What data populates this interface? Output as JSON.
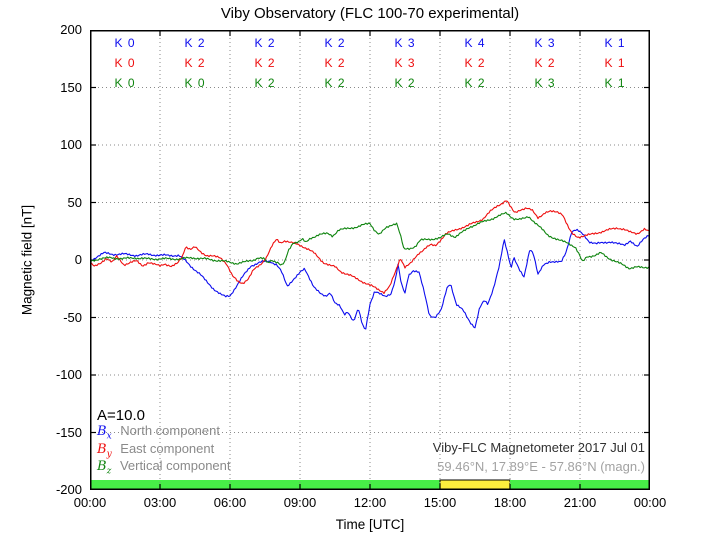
{
  "title": "Viby Observatory (FLC 100-70 experimental)",
  "axes": {
    "x_label": "Time [UTC]",
    "y_label": "Magnetic field [nT]",
    "x_ticks": [
      "00:00",
      "03:00",
      "06:00",
      "09:00",
      "12:00",
      "15:00",
      "18:00",
      "21:00",
      "00:00"
    ],
    "y_ticks": [
      "200",
      "150",
      "100",
      "50",
      "0",
      "-50",
      "-100",
      "-150",
      "-200"
    ],
    "x_range_hours": [
      0,
      24
    ],
    "y_range": [
      -200,
      200
    ],
    "grid": "dotted",
    "x_gridline_step_hours": 3,
    "y_gridline_step": 50
  },
  "k_indices": {
    "interval_hours": 3,
    "rows": [
      {
        "component": "north",
        "color": "#0d0dee",
        "values": [
          "K 0",
          "K 2",
          "K 2",
          "K 2",
          "K 3",
          "K 4",
          "K 3",
          "K 1"
        ]
      },
      {
        "component": "east",
        "color": "#ee0e0e",
        "values": [
          "K 0",
          "K 2",
          "K 2",
          "K 2",
          "K 3",
          "K 2",
          "K 2",
          "K 1"
        ]
      },
      {
        "component": "vertical",
        "color": "#0e840e",
        "values": [
          "K 0",
          "K 0",
          "K 2",
          "K 2",
          "K 2",
          "K 2",
          "K 3",
          "K 1"
        ]
      }
    ]
  },
  "annotations": {
    "a_index": "A=10.0",
    "station_line1": "Viby-FLC Magnetometer 2017 Jul 01",
    "station_line2": "59.46°N, 17.89°E - 57.86°N (magn.)"
  },
  "legend": [
    {
      "base": "B",
      "sub": "x",
      "label": "North component"
    },
    {
      "base": "B",
      "sub": "y",
      "label": "East component"
    },
    {
      "base": "B",
      "sub": "z",
      "label": "Vertical component"
    }
  ],
  "colors": {
    "north": "#0d0dee",
    "east": "#ee0e0e",
    "vertical": "#0e840e",
    "grid": "#8a8a8a",
    "frame": "#000000",
    "legend_text": "#8a8a8a",
    "station_primary": "#303030",
    "station_secondary": "#a2a2a2",
    "bar_quiet": "#47ef47",
    "bar_active": "#fdee3d"
  },
  "activity_bar": {
    "segments": [
      {
        "from_hour": 0,
        "to_hour": 15,
        "color": "#47ef47",
        "outlined": false
      },
      {
        "from_hour": 15,
        "to_hour": 18,
        "color": "#fdee3d",
        "outlined": true
      },
      {
        "from_hour": 18,
        "to_hour": 24,
        "color": "#47ef47",
        "outlined": false
      }
    ]
  },
  "chart_data": {
    "type": "line",
    "xlabel": "Time [UTC]",
    "ylabel": "Magnetic field [nT]",
    "xlim_hours": [
      0,
      24
    ],
    "ylim": [
      -200,
      200
    ],
    "x_units": "hours UTC",
    "y_units": "nT",
    "series": [
      {
        "name": "Bx North component",
        "color": "#0d0dee",
        "points": [
          [
            0,
            -1
          ],
          [
            0.3,
            3
          ],
          [
            0.6,
            6
          ],
          [
            1,
            5
          ],
          [
            1.5,
            5
          ],
          [
            2,
            4
          ],
          [
            2.5,
            5
          ],
          [
            3,
            4
          ],
          [
            3.5,
            4
          ],
          [
            3.8,
            4
          ],
          [
            4,
            1
          ],
          [
            4.3,
            -5
          ],
          [
            4.7,
            -12
          ],
          [
            5,
            -19
          ],
          [
            5.3,
            -25
          ],
          [
            5.6,
            -30
          ],
          [
            5.8,
            -32
          ],
          [
            6,
            -31
          ],
          [
            6.3,
            -22
          ],
          [
            6.6,
            -13
          ],
          [
            6.9,
            -5
          ],
          [
            7.3,
            -2
          ],
          [
            7.7,
            -1
          ],
          [
            8,
            -4
          ],
          [
            8.2,
            -10
          ],
          [
            8.45,
            -23
          ],
          [
            8.7,
            -17
          ],
          [
            9,
            -11
          ],
          [
            9.2,
            -8
          ],
          [
            9.6,
            -23
          ],
          [
            9.9,
            -30
          ],
          [
            10.1,
            -32
          ],
          [
            10.3,
            -28
          ],
          [
            10.5,
            -37
          ],
          [
            10.7,
            -40
          ],
          [
            10.9,
            -48
          ],
          [
            11.05,
            -45
          ],
          [
            11.3,
            -53
          ],
          [
            11.5,
            -42
          ],
          [
            11.65,
            -55
          ],
          [
            11.8,
            -62
          ],
          [
            12,
            -38
          ],
          [
            12.2,
            -27
          ],
          [
            12.45,
            -30
          ],
          [
            12.65,
            -32
          ],
          [
            12.9,
            -29
          ],
          [
            13.1,
            -16
          ],
          [
            13.2,
            -4
          ],
          [
            13.35,
            -22
          ],
          [
            13.5,
            -29
          ],
          [
            13.65,
            -13
          ],
          [
            13.85,
            -9
          ],
          [
            14.1,
            -11
          ],
          [
            14.35,
            -30
          ],
          [
            14.55,
            -48
          ],
          [
            14.8,
            -50
          ],
          [
            15.05,
            -44
          ],
          [
            15.3,
            -24
          ],
          [
            15.45,
            -20
          ],
          [
            15.7,
            -39
          ],
          [
            16,
            -44
          ],
          [
            16.3,
            -54
          ],
          [
            16.5,
            -59
          ],
          [
            16.7,
            -42
          ],
          [
            16.9,
            -35
          ],
          [
            17.05,
            -38
          ],
          [
            17.3,
            -24
          ],
          [
            17.55,
            -5
          ],
          [
            17.75,
            18
          ],
          [
            17.95,
            2
          ],
          [
            18.05,
            -7
          ],
          [
            18.15,
            3
          ],
          [
            18.4,
            -9
          ],
          [
            18.6,
            -15
          ],
          [
            18.85,
            10
          ],
          [
            19,
            6
          ],
          [
            19.2,
            -13
          ],
          [
            19.45,
            -4
          ],
          [
            19.7,
            -1
          ],
          [
            20,
            -2
          ],
          [
            20.2,
            -2
          ],
          [
            20.4,
            7
          ],
          [
            20.65,
            25
          ],
          [
            20.85,
            26
          ],
          [
            21.15,
            22
          ],
          [
            21.4,
            16
          ],
          [
            21.7,
            14
          ],
          [
            22,
            15
          ],
          [
            22.3,
            16
          ],
          [
            22.6,
            14
          ],
          [
            22.9,
            13
          ],
          [
            23.15,
            17
          ],
          [
            23.45,
            11
          ],
          [
            23.75,
            19
          ],
          [
            24,
            23
          ]
        ]
      },
      {
        "name": "By East component",
        "color": "#ee0e0e",
        "points": [
          [
            0,
            -2
          ],
          [
            0.2,
            -6
          ],
          [
            0.45,
            -3
          ],
          [
            0.7,
            2
          ],
          [
            0.95,
            -2
          ],
          [
            1.15,
            3
          ],
          [
            1.45,
            -4
          ],
          [
            1.75,
            -2
          ],
          [
            2,
            -1
          ],
          [
            2.25,
            -5
          ],
          [
            2.5,
            -2
          ],
          [
            2.75,
            -4
          ],
          [
            3,
            -5
          ],
          [
            3.2,
            -3
          ],
          [
            3.5,
            -6
          ],
          [
            3.75,
            -3
          ],
          [
            3.95,
            3
          ],
          [
            4.1,
            12
          ],
          [
            4.3,
            9
          ],
          [
            4.5,
            11
          ],
          [
            4.75,
            7
          ],
          [
            5,
            4
          ],
          [
            5.3,
            3
          ],
          [
            5.6,
            2
          ],
          [
            5.85,
            -3
          ],
          [
            6.1,
            -14
          ],
          [
            6.35,
            -19
          ],
          [
            6.55,
            -20
          ],
          [
            6.8,
            -16
          ],
          [
            7,
            -9
          ],
          [
            7.3,
            -4
          ],
          [
            7.55,
            2
          ],
          [
            7.8,
            12
          ],
          [
            8,
            18
          ],
          [
            8.15,
            15
          ],
          [
            8.35,
            17
          ],
          [
            8.6,
            15
          ],
          [
            9,
            13
          ],
          [
            9.3,
            10
          ],
          [
            9.6,
            6
          ],
          [
            10,
            -2
          ],
          [
            10.3,
            -5
          ],
          [
            10.5,
            -6
          ],
          [
            10.75,
            -10
          ],
          [
            11.1,
            -13
          ],
          [
            11.4,
            -16
          ],
          [
            11.8,
            -20
          ],
          [
            12,
            -22
          ],
          [
            12.3,
            -25
          ],
          [
            12.6,
            -28
          ],
          [
            12.85,
            -23
          ],
          [
            13.1,
            -10
          ],
          [
            13.3,
            2
          ],
          [
            13.5,
            -6
          ],
          [
            13.75,
            -3
          ],
          [
            14.1,
            6
          ],
          [
            14.4,
            11
          ],
          [
            14.6,
            13
          ],
          [
            14.8,
            12
          ],
          [
            15,
            17
          ],
          [
            15.25,
            23
          ],
          [
            15.55,
            25
          ],
          [
            15.9,
            28
          ],
          [
            16.2,
            30
          ],
          [
            16.55,
            33
          ],
          [
            16.85,
            36
          ],
          [
            17.15,
            42
          ],
          [
            17.45,
            47
          ],
          [
            17.7,
            50
          ],
          [
            17.85,
            52
          ],
          [
            18.05,
            45
          ],
          [
            18.2,
            41
          ],
          [
            18.45,
            44
          ],
          [
            18.7,
            45
          ],
          [
            18.95,
            43
          ],
          [
            19.2,
            37
          ],
          [
            19.5,
            41
          ],
          [
            19.75,
            42
          ],
          [
            20.05,
            42
          ],
          [
            20.25,
            40
          ],
          [
            20.5,
            28
          ],
          [
            20.65,
            23
          ],
          [
            20.9,
            20
          ],
          [
            21.15,
            21
          ],
          [
            21.45,
            22
          ],
          [
            21.8,
            24
          ],
          [
            22.2,
            26
          ],
          [
            22.6,
            28
          ],
          [
            22.85,
            27
          ],
          [
            23.15,
            24
          ],
          [
            23.45,
            23
          ],
          [
            23.75,
            27
          ],
          [
            24,
            24
          ]
        ]
      },
      {
        "name": "Bz Vertical component",
        "color": "#0e840e",
        "points": [
          [
            0,
            -1
          ],
          [
            0.4,
            1
          ],
          [
            0.9,
            2
          ],
          [
            1.4,
            1
          ],
          [
            1.9,
            2
          ],
          [
            2.4,
            1
          ],
          [
            2.9,
            1
          ],
          [
            3.4,
            1
          ],
          [
            3.9,
            1
          ],
          [
            4.4,
            2
          ],
          [
            4.9,
            1
          ],
          [
            5.3,
            0
          ],
          [
            5.7,
            -1
          ],
          [
            6,
            -2
          ],
          [
            6.3,
            -3
          ],
          [
            6.6,
            -2
          ],
          [
            7,
            0
          ],
          [
            7.2,
            2
          ],
          [
            7.45,
            1
          ],
          [
            7.6,
            -3
          ],
          [
            7.8,
            0
          ],
          [
            8.05,
            -2
          ],
          [
            8.2,
            -5
          ],
          [
            8.35,
            -2
          ],
          [
            8.5,
            8
          ],
          [
            8.7,
            15
          ],
          [
            8.95,
            16
          ],
          [
            9.1,
            18
          ],
          [
            9.25,
            15
          ],
          [
            9.45,
            19
          ],
          [
            9.8,
            22
          ],
          [
            10.2,
            23
          ],
          [
            10.4,
            21
          ],
          [
            10.65,
            26
          ],
          [
            10.95,
            27
          ],
          [
            11.2,
            28
          ],
          [
            11.5,
            29
          ],
          [
            11.8,
            31
          ],
          [
            12,
            32
          ],
          [
            12.2,
            26
          ],
          [
            12.4,
            22
          ],
          [
            12.7,
            28
          ],
          [
            12.95,
            31
          ],
          [
            13.15,
            32
          ],
          [
            13.35,
            18
          ],
          [
            13.45,
            9
          ],
          [
            13.7,
            10
          ],
          [
            13.95,
            12
          ],
          [
            14.15,
            17
          ],
          [
            14.5,
            18
          ],
          [
            15,
            19
          ],
          [
            15.35,
            23
          ],
          [
            15.65,
            20
          ],
          [
            15.95,
            24
          ],
          [
            16.3,
            29
          ],
          [
            16.7,
            32
          ],
          [
            17.1,
            35
          ],
          [
            17.5,
            38
          ],
          [
            17.85,
            41
          ],
          [
            18.15,
            36
          ],
          [
            18.4,
            35
          ],
          [
            18.6,
            36
          ],
          [
            18.8,
            38
          ],
          [
            19.05,
            33
          ],
          [
            19.25,
            29
          ],
          [
            19.6,
            22
          ],
          [
            20.1,
            17
          ],
          [
            20.5,
            15
          ],
          [
            20.8,
            11
          ],
          [
            21,
            3
          ],
          [
            21.1,
            -2
          ],
          [
            21.3,
            3
          ],
          [
            21.65,
            4
          ],
          [
            21.9,
            6
          ],
          [
            22.2,
            2
          ],
          [
            22.5,
            -1
          ],
          [
            22.8,
            -4
          ],
          [
            23.1,
            -7
          ],
          [
            23.4,
            -6
          ],
          [
            23.7,
            -7
          ],
          [
            24,
            -6
          ]
        ]
      }
    ]
  }
}
